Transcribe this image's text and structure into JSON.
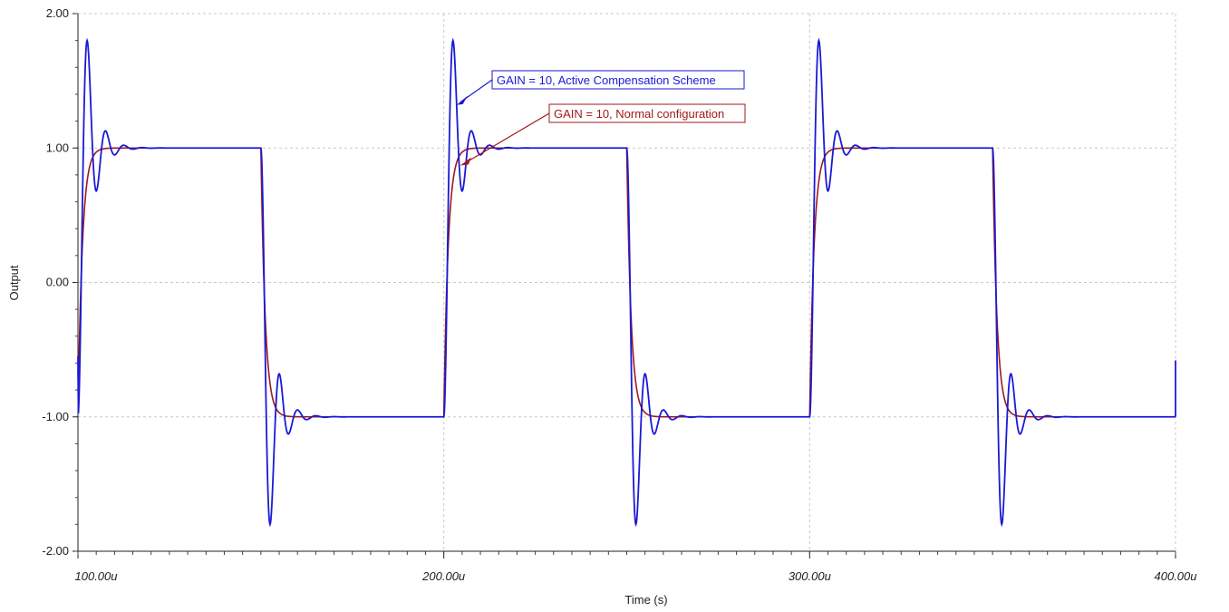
{
  "chart_data": {
    "type": "line",
    "xlabel": "Time (s)",
    "ylabel": "Output",
    "xlim": [
      0.0001,
      0.0004
    ],
    "ylim": [
      -2,
      2
    ],
    "x_tick_labels": [
      "100.00u",
      "200.00u",
      "300.00u",
      "400.00u"
    ],
    "y_tick_labels": [
      "2.00",
      "1.00",
      "0.00",
      "-1.00",
      "-2.00"
    ],
    "grid": true,
    "period": 0.0001,
    "series": [
      {
        "name": "GAIN = 10, Active Compensation Scheme",
        "color": "#1a1ad6",
        "overshoot_peak": 1.52,
        "first_undershoot": 0.9,
        "settled_level": 1.0,
        "peak_time_after_edge": 1.9e-06
      },
      {
        "name": "GAIN = 10, Normal configuration",
        "color": "#a01a1a",
        "overshoot_peak": 1.0,
        "settled_level": 1.0,
        "rise_time_constant": 1.2e-06
      }
    ],
    "annotations": [
      {
        "text": "GAIN = 10, Active Compensation Scheme",
        "series": 0,
        "points_to": [
          0.0002035,
          1.32
        ]
      },
      {
        "text": "GAIN = 10, Normal configuration",
        "series": 1,
        "points_to": [
          0.0002045,
          0.87
        ]
      }
    ]
  }
}
